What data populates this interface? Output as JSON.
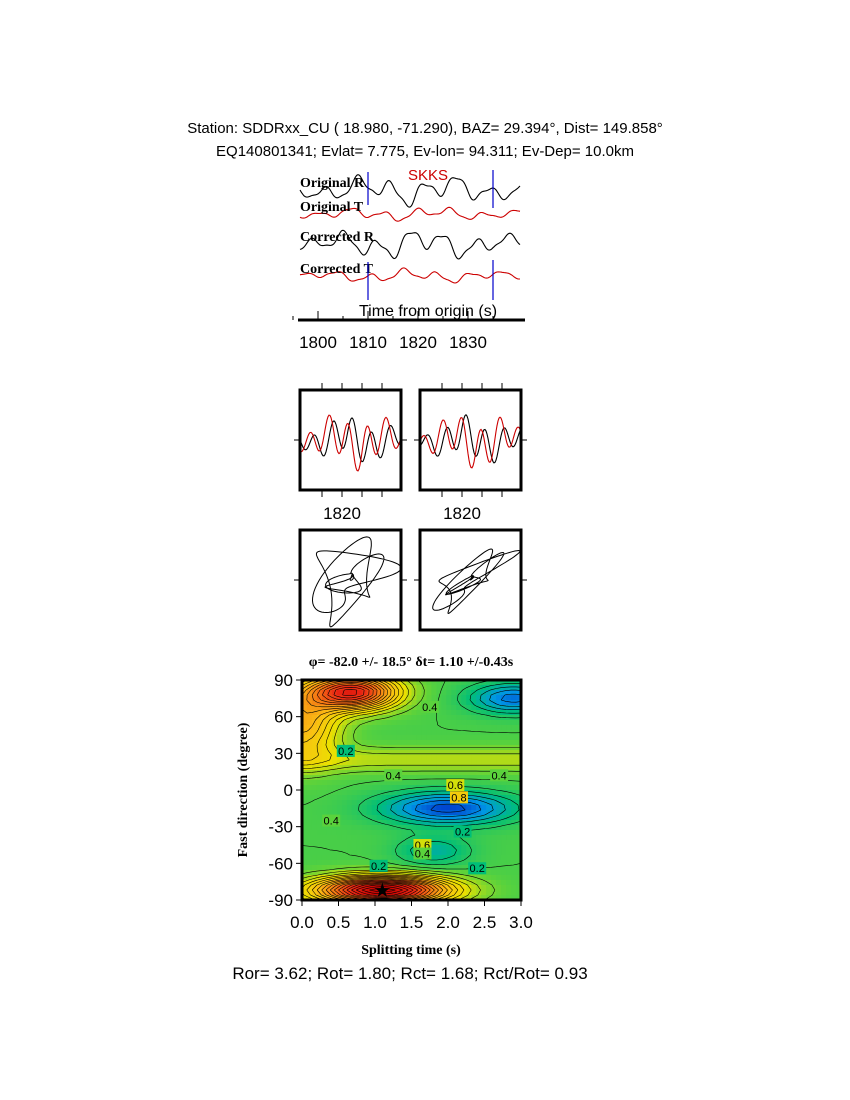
{
  "header": {
    "line1": "Station: SDDRxx_CU (  18.980,  -71.290), BAZ=   29.394°, Dist=  149.858°",
    "line2": "EQ140801341; Evlat=   7.775, Ev-lon=  94.311; Ev-Dep= 10.0km"
  },
  "phase_label": "SKKS",
  "colors": {
    "radial": "#000000",
    "transverse": "#cc0000",
    "marker": "#0000cc"
  },
  "chart_data": [
    {
      "type": "line",
      "title": "",
      "traces": [
        {
          "label": "Original R",
          "component": "radial"
        },
        {
          "label": "Original T",
          "component": "transverse"
        },
        {
          "label": "Corrected R",
          "component": "radial"
        },
        {
          "label": "Corrected T",
          "component": "transverse"
        }
      ],
      "xlabel": "Time from origin (s)",
      "xticks": [
        1800,
        1810,
        1820,
        1830
      ],
      "xlim": [
        1796,
        1838
      ],
      "window_markers": [
        1810,
        1835
      ]
    },
    {
      "type": "line",
      "panels": [
        "original",
        "corrected"
      ],
      "xticks": [
        1820
      ],
      "xlim": [
        1810,
        1835
      ]
    },
    {
      "type": "scatter",
      "description_type": "particle motion",
      "panels": [
        "original",
        "corrected"
      ]
    },
    {
      "type": "heatmap",
      "title_phi": "φ= -82.0 +/- 18.5° ",
      "title_dt": "δt= 1.10 +/-0.43s",
      "xlabel": "Splitting time (s)",
      "ylabel": "Fast direction (degree)",
      "xlim": [
        0.0,
        3.0
      ],
      "ylim": [
        -90,
        90
      ],
      "xticks": [
        "0.0",
        "0.5",
        "1.0",
        "1.5",
        "2.0",
        "2.5",
        "3.0"
      ],
      "yticks": [
        90,
        60,
        30,
        0,
        -30,
        -60,
        -90
      ],
      "best_fit": {
        "dt": 1.1,
        "phi": -82.0
      },
      "contour_labels": [
        {
          "text": "0.2",
          "x": 0.6,
          "y": 32
        },
        {
          "text": "0.4",
          "x": 1.25,
          "y": 12
        },
        {
          "text": "0.6",
          "x": 2.1,
          "y": 4
        },
        {
          "text": "0.4",
          "x": 2.7,
          "y": 12
        },
        {
          "text": "0.8",
          "x": 2.15,
          "y": -6
        },
        {
          "text": "0.2",
          "x": 2.2,
          "y": -34
        },
        {
          "text": "0.6",
          "x": 1.65,
          "y": -45
        },
        {
          "text": "0.4",
          "x": 1.65,
          "y": -52
        },
        {
          "text": "0.2",
          "x": 1.05,
          "y": -62
        },
        {
          "text": "0.2",
          "x": 2.4,
          "y": -64
        },
        {
          "text": "0.4",
          "x": 1.75,
          "y": 68
        },
        {
          "text": "0.4",
          "x": 0.4,
          "y": -25
        }
      ]
    }
  ],
  "footer": "Ror= 3.62; Rot= 1.80; Rct= 1.68; Rct/Rot= 0.93"
}
